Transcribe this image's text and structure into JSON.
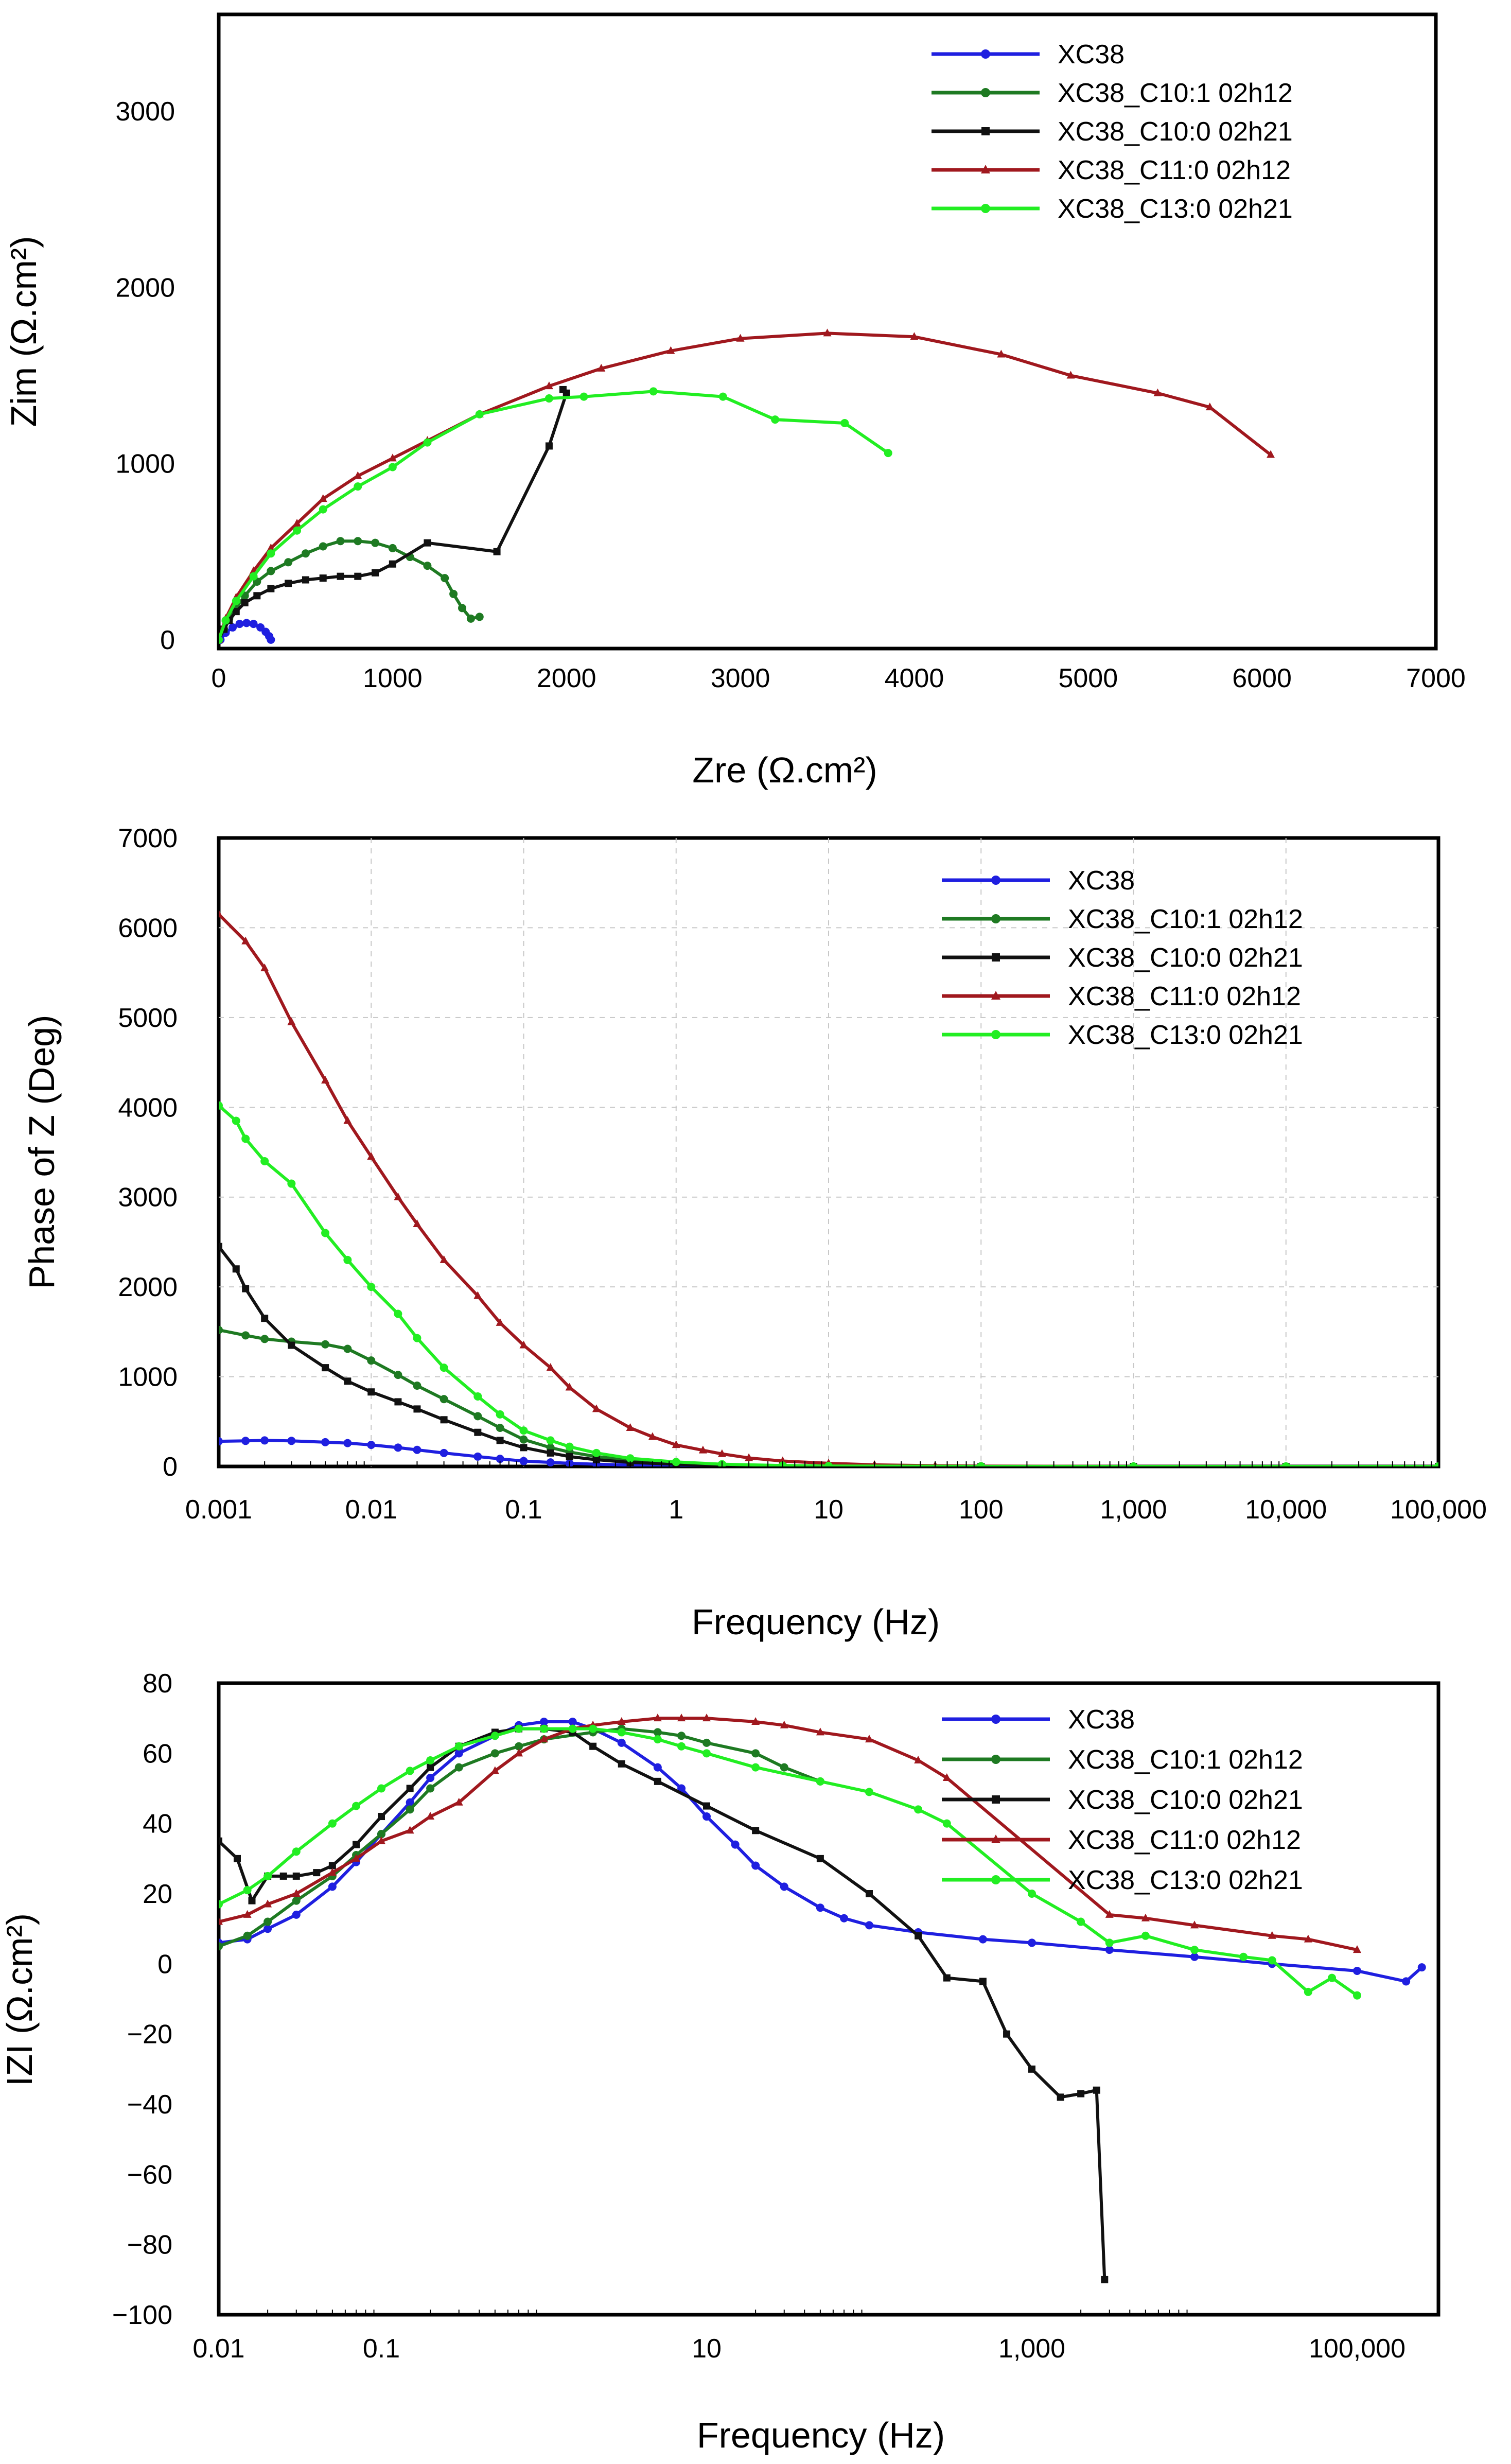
{
  "chart_data": [
    {
      "type": "scatter",
      "title": "",
      "xlabel": "Zre (Ω.cm²)",
      "ylabel": "Zim (Ω.cm²)",
      "xscale": "linear",
      "xlim": [
        0,
        7000
      ],
      "ylim": [
        -50,
        3550
      ],
      "xticks": [
        0,
        1000,
        2000,
        3000,
        4000,
        5000,
        6000,
        7000
      ],
      "xtick_labels": [
        "0",
        "1000",
        "2000",
        "3000",
        "4000",
        "5000",
        "6000",
        "7000"
      ],
      "yticks": [
        0,
        1000,
        2000,
        3000
      ],
      "ytick_labels": [
        "0",
        "1000",
        "2000",
        "3000"
      ],
      "grid": false,
      "legend_position": "top-right",
      "series": [
        {
          "name": "XC38",
          "color": "#1f1fe0",
          "marker": "circle",
          "x": [
            10,
            40,
            80,
            120,
            160,
            200,
            240,
            270,
            290,
            300
          ],
          "y": [
            0,
            40,
            70,
            90,
            95,
            90,
            70,
            45,
            20,
            0
          ]
        },
        {
          "name": "XC38_C10:1 02h12",
          "color": "#1e7a22",
          "marker": "circle",
          "x": [
            0,
            30,
            60,
            100,
            150,
            220,
            300,
            400,
            500,
            600,
            700,
            800,
            900,
            1000,
            1100,
            1200,
            1300,
            1350,
            1400,
            1450,
            1500
          ],
          "y": [
            0,
            60,
            120,
            180,
            250,
            330,
            390,
            440,
            490,
            530,
            560,
            560,
            550,
            520,
            470,
            420,
            350,
            260,
            180,
            120,
            130
          ]
        },
        {
          "name": "XC38_C10:0 02h21",
          "color": "#111111",
          "marker": "square",
          "x": [
            0,
            30,
            60,
            100,
            150,
            220,
            300,
            400,
            500,
            600,
            700,
            800,
            900,
            1000,
            1200,
            1600,
            1900,
            2000,
            1980
          ],
          "y": [
            0,
            60,
            110,
            160,
            210,
            250,
            290,
            320,
            340,
            350,
            360,
            360,
            380,
            430,
            550,
            500,
            1100,
            1400,
            1420
          ]
        },
        {
          "name": "XC38_C11:0 02h12",
          "color": "#a0181e",
          "marker": "triangle",
          "x": [
            0,
            40,
            100,
            200,
            300,
            450,
            600,
            800,
            1000,
            1200,
            1500,
            1900,
            2200,
            2600,
            3000,
            3500,
            4000,
            4500,
            4900,
            5400,
            5700,
            6050
          ],
          "y": [
            0,
            120,
            240,
            390,
            520,
            660,
            800,
            930,
            1030,
            1130,
            1280,
            1440,
            1540,
            1640,
            1710,
            1740,
            1720,
            1620,
            1500,
            1400,
            1320,
            1050
          ]
        },
        {
          "name": "XC38_C13:0 02h21",
          "color": "#22ee22",
          "marker": "circle",
          "x": [
            0,
            40,
            100,
            200,
            300,
            450,
            600,
            800,
            1000,
            1200,
            1500,
            1900,
            2100,
            2500,
            2900,
            3200,
            3600,
            3850
          ],
          "y": [
            0,
            110,
            220,
            360,
            490,
            620,
            740,
            870,
            980,
            1120,
            1280,
            1370,
            1380,
            1410,
            1380,
            1250,
            1230,
            1060
          ]
        }
      ]
    },
    {
      "type": "line",
      "title": "",
      "xlabel": "Frequency (Hz)",
      "ylabel": "Phase of Z (Deg)",
      "xscale": "log",
      "xlim": [
        0.001,
        100000
      ],
      "ylim": [
        0,
        7000
      ],
      "xticks": [
        0.001,
        0.01,
        0.1,
        1,
        10,
        100,
        1000,
        10000,
        100000
      ],
      "xtick_labels": [
        "0.001",
        "0.01",
        "0.1",
        "1",
        "10",
        "100",
        "1,000",
        "10,000",
        "100,000"
      ],
      "yticks": [
        0,
        1000,
        2000,
        3000,
        4000,
        5000,
        6000,
        7000
      ],
      "ytick_labels": [
        "0",
        "1000",
        "2000",
        "3000",
        "4000",
        "5000",
        "6000",
        "7000"
      ],
      "grid": true,
      "legend_position": "top-right",
      "series": [
        {
          "name": "XC38",
          "color": "#1f1fe0",
          "marker": "circle",
          "x": [
            0.001,
            0.0015,
            0.002,
            0.003,
            0.005,
            0.007,
            0.01,
            0.015,
            0.02,
            0.03,
            0.05,
            0.07,
            0.1,
            0.15,
            0.2,
            0.3,
            0.5,
            1,
            2,
            5,
            10,
            100,
            1000,
            10000,
            100000
          ],
          "y": [
            280,
            285,
            290,
            285,
            270,
            260,
            240,
            210,
            185,
            150,
            110,
            85,
            60,
            45,
            35,
            25,
            15,
            8,
            4,
            2,
            1,
            0,
            0,
            0,
            0
          ]
        },
        {
          "name": "XC38_C10:1 02h12",
          "color": "#1e7a22",
          "marker": "circle",
          "x": [
            0.001,
            0.0015,
            0.002,
            0.003,
            0.005,
            0.007,
            0.01,
            0.015,
            0.02,
            0.03,
            0.05,
            0.07,
            0.1,
            0.15,
            0.2,
            0.3,
            0.5,
            1,
            2,
            5,
            10,
            100,
            1000,
            10000,
            100000
          ],
          "y": [
            1520,
            1460,
            1420,
            1390,
            1360,
            1310,
            1180,
            1020,
            900,
            750,
            560,
            430,
            300,
            210,
            160,
            110,
            70,
            40,
            20,
            10,
            5,
            2,
            0,
            0,
            0
          ]
        },
        {
          "name": "XC38_C10:0 02h21",
          "color": "#111111",
          "marker": "square",
          "x": [
            0.001,
            0.0013,
            0.0015,
            0.002,
            0.003,
            0.005,
            0.007,
            0.01,
            0.015,
            0.02,
            0.03,
            0.05,
            0.07,
            0.1,
            0.15,
            0.2,
            0.3,
            0.5,
            1,
            2,
            5,
            10,
            100,
            1000,
            10000,
            100000
          ],
          "y": [
            2450,
            2200,
            1980,
            1650,
            1350,
            1100,
            950,
            830,
            720,
            640,
            520,
            380,
            290,
            210,
            150,
            110,
            75,
            45,
            25,
            12,
            6,
            3,
            0,
            0,
            0,
            0
          ]
        },
        {
          "name": "XC38_C11:0 02h12",
          "color": "#a0181e",
          "marker": "triangle",
          "x": [
            0.001,
            0.0015,
            0.002,
            0.003,
            0.005,
            0.007,
            0.01,
            0.015,
            0.02,
            0.03,
            0.05,
            0.07,
            0.1,
            0.15,
            0.2,
            0.3,
            0.5,
            0.7,
            1,
            1.5,
            2,
            3,
            5,
            10,
            20,
            50,
            100,
            1000,
            10000,
            100000
          ],
          "y": [
            6150,
            5850,
            5550,
            4950,
            4300,
            3850,
            3450,
            3000,
            2700,
            2300,
            1900,
            1600,
            1350,
            1100,
            880,
            640,
            430,
            330,
            240,
            180,
            140,
            95,
            60,
            35,
            18,
            8,
            4,
            1,
            0,
            0
          ]
        },
        {
          "name": "XC38_C13:0 02h21",
          "color": "#22ee22",
          "marker": "circle",
          "x": [
            0.001,
            0.0013,
            0.0015,
            0.002,
            0.003,
            0.005,
            0.007,
            0.01,
            0.015,
            0.02,
            0.03,
            0.05,
            0.07,
            0.1,
            0.15,
            0.2,
            0.3,
            0.5,
            1,
            2,
            5,
            10,
            100,
            1000,
            10000,
            100000
          ],
          "y": [
            4020,
            3850,
            3650,
            3400,
            3150,
            2600,
            2300,
            2000,
            1700,
            1430,
            1100,
            780,
            580,
            400,
            290,
            220,
            150,
            90,
            50,
            25,
            10,
            5,
            1,
            0,
            0,
            0
          ]
        }
      ]
    },
    {
      "type": "line",
      "title": "",
      "xlabel": "Frequency (Hz)",
      "ylabel": "IZI (Ω.cm²)",
      "xscale": "log",
      "xlim": [
        0.01,
        316228
      ],
      "ylim": [
        -100,
        80
      ],
      "xticks": [
        0.01,
        0.1,
        10,
        1000,
        100000
      ],
      "xtick_labels": [
        "0.01",
        "0.1",
        "10",
        "1,000",
        "100,000"
      ],
      "yticks": [
        -100,
        -80,
        -60,
        -40,
        -20,
        0,
        20,
        40,
        60,
        80
      ],
      "ytick_labels": [
        "−100",
        "−80",
        "−60",
        "−40",
        "−20",
        "0",
        "20",
        "40",
        "60",
        "80"
      ],
      "grid": false,
      "legend_position": "top-right",
      "series": [
        {
          "name": "XC38",
          "color": "#1f1fe0",
          "marker": "circle",
          "x": [
            0.01,
            0.015,
            0.02,
            0.03,
            0.05,
            0.07,
            0.1,
            0.15,
            0.2,
            0.3,
            0.5,
            0.7,
            1,
            1.5,
            2,
            3,
            5,
            7,
            10,
            15,
            20,
            30,
            50,
            70,
            100,
            200,
            500,
            1000,
            3000,
            10000,
            30000,
            100000,
            200000,
            250000
          ],
          "y": [
            6,
            7,
            10,
            14,
            22,
            29,
            37,
            46,
            53,
            60,
            65,
            68,
            69,
            69,
            67,
            63,
            56,
            50,
            42,
            34,
            28,
            22,
            16,
            13,
            11,
            9,
            7,
            6,
            4,
            2,
            0,
            -2,
            -5,
            -1
          ]
        },
        {
          "name": "XC38_C10:1 02h12",
          "color": "#1e7a22",
          "marker": "circle",
          "x": [
            0.01,
            0.015,
            0.02,
            0.03,
            0.05,
            0.07,
            0.1,
            0.15,
            0.2,
            0.3,
            0.5,
            0.7,
            1,
            2,
            3,
            5,
            7,
            10,
            20,
            30,
            50
          ],
          "y": [
            5,
            8,
            12,
            18,
            25,
            31,
            37,
            44,
            50,
            56,
            60,
            62,
            64,
            66,
            67,
            66,
            65,
            63,
            60,
            56,
            52
          ]
        },
        {
          "name": "XC38_C10:0 02h21",
          "color": "#111111",
          "marker": "square",
          "x": [
            0.01,
            0.013,
            0.016,
            0.02,
            0.025,
            0.03,
            0.04,
            0.05,
            0.07,
            0.1,
            0.15,
            0.2,
            0.3,
            0.5,
            0.7,
            1,
            1.5,
            2,
            3,
            5,
            10,
            20,
            50,
            100,
            200,
            300,
            500,
            700,
            1000,
            1500,
            2000,
            2500,
            2800
          ],
          "y": [
            35,
            30,
            18,
            25,
            25,
            25,
            26,
            28,
            34,
            42,
            50,
            56,
            62,
            66,
            67,
            67,
            66,
            62,
            57,
            52,
            45,
            38,
            30,
            20,
            8,
            -4,
            -5,
            -20,
            -30,
            -38,
            -37,
            -36,
            -90
          ]
        },
        {
          "name": "XC38_C11:0 02h12",
          "color": "#a0181e",
          "marker": "triangle",
          "x": [
            0.01,
            0.015,
            0.02,
            0.03,
            0.05,
            0.07,
            0.1,
            0.15,
            0.2,
            0.3,
            0.5,
            0.7,
            1,
            1.5,
            2,
            3,
            5,
            7,
            10,
            20,
            30,
            50,
            100,
            200,
            300,
            3000,
            5000,
            10000,
            30000,
            50000,
            100000
          ],
          "y": [
            12,
            14,
            17,
            20,
            26,
            30,
            35,
            38,
            42,
            46,
            55,
            60,
            64,
            67,
            68,
            69,
            70,
            70,
            70,
            69,
            68,
            66,
            64,
            58,
            53,
            14,
            13,
            11,
            8,
            7,
            4
          ]
        },
        {
          "name": "XC38_C13:0 02h21",
          "color": "#22ee22",
          "marker": "circle",
          "x": [
            0.01,
            0.015,
            0.02,
            0.03,
            0.05,
            0.07,
            0.1,
            0.15,
            0.2,
            0.3,
            0.5,
            0.7,
            1,
            1.5,
            2,
            3,
            5,
            7,
            10,
            20,
            50,
            100,
            200,
            300,
            1000,
            2000,
            3000,
            5000,
            10000,
            20000,
            30000,
            50000,
            70000,
            100000
          ],
          "y": [
            17,
            21,
            25,
            32,
            40,
            45,
            50,
            55,
            58,
            62,
            65,
            67,
            67,
            67,
            67,
            66,
            64,
            62,
            60,
            56,
            52,
            49,
            44,
            40,
            20,
            12,
            6,
            8,
            4,
            2,
            1,
            -8,
            -4,
            -9
          ]
        }
      ]
    }
  ]
}
